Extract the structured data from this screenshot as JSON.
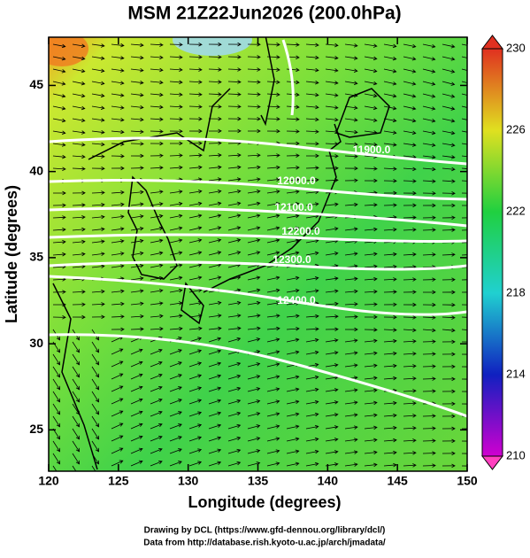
{
  "title": "MSM 21Z22Jun2026 (200.0hPa)",
  "x_axis": {
    "label": "Longitude (degrees)",
    "lim": [
      120,
      150
    ],
    "ticks": [
      120,
      125,
      130,
      135,
      140,
      145,
      150
    ]
  },
  "y_axis": {
    "label": "Latitude  (degrees)",
    "lim": [
      22.6,
      47.8
    ],
    "ticks": [
      25,
      30,
      35,
      40,
      45
    ]
  },
  "colorbar": {
    "lim": [
      210,
      230
    ],
    "ticks": [
      210,
      214,
      218,
      222,
      226,
      230
    ]
  },
  "contour_labels": [
    "11900.0",
    "12000.0",
    "12100.0",
    "12200.0",
    "12300.0",
    "12400.0"
  ],
  "footer": [
    "Drawing by DCL (https://www.gfd-dennou.org/library/dcl/)",
    "Data from http://database.rish.kyoto-u.ac.jp/arch/jmadata/"
  ]
}
